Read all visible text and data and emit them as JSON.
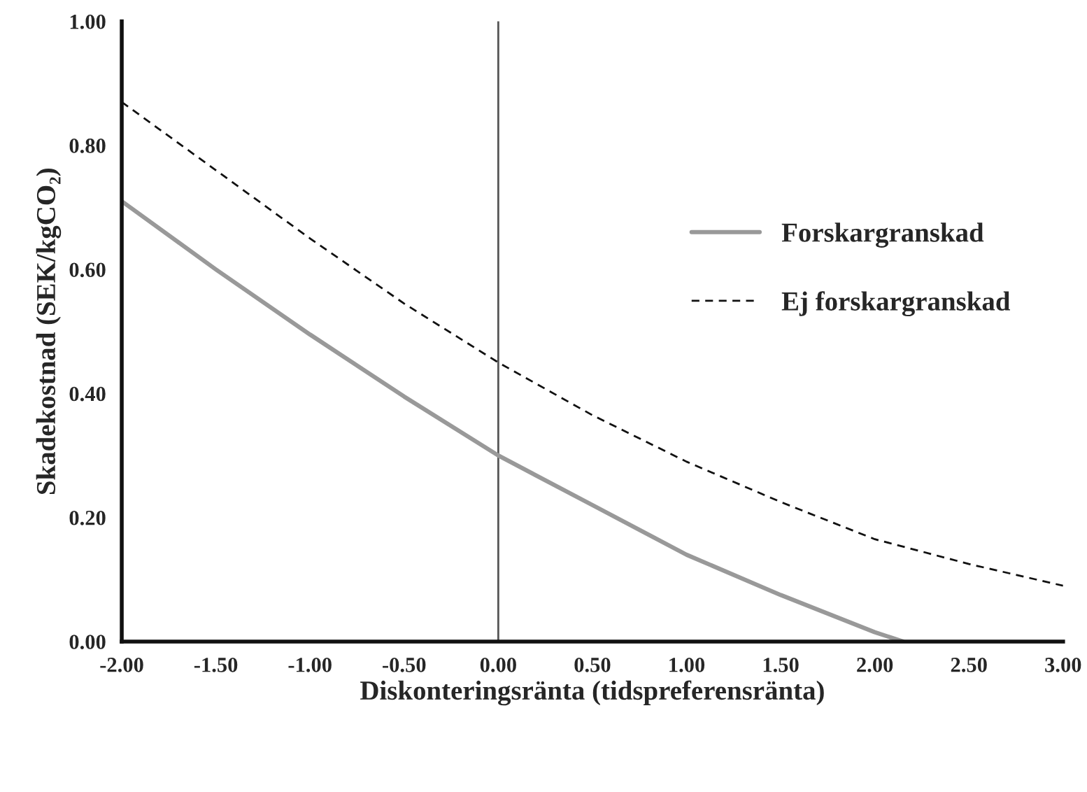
{
  "chart_data": {
    "type": "line",
    "xlabel": "Diskonteringsränta (tidspreferensränta)",
    "ylabel": "Skadekostnad (SEK/kgCO₂)",
    "series": [
      {
        "name": "Forskargranskad",
        "color": "#999999",
        "line_style": "solid",
        "x": [
          -2.0,
          -1.5,
          -1.0,
          -0.5,
          0.0,
          0.5,
          1.0,
          1.5,
          2.0,
          2.15
        ],
        "values": [
          0.71,
          0.6,
          0.495,
          0.395,
          0.3,
          0.22,
          0.14,
          0.075,
          0.015,
          0.0
        ]
      },
      {
        "name": "Ej forskargranskad",
        "color": "#111111",
        "line_style": "dashed",
        "x": [
          -2.0,
          -1.5,
          -1.0,
          -0.5,
          0.0,
          0.5,
          1.0,
          1.5,
          2.0,
          2.5,
          3.0
        ],
        "values": [
          0.87,
          0.76,
          0.65,
          0.545,
          0.45,
          0.365,
          0.29,
          0.225,
          0.165,
          0.125,
          0.09
        ]
      }
    ],
    "xlim": [
      -2.0,
      3.0
    ],
    "xticks": [
      {
        "value": -2.0,
        "label": "-2.00"
      },
      {
        "value": -1.5,
        "label": "-1.50"
      },
      {
        "value": -1.0,
        "label": "-1.00"
      },
      {
        "value": -0.5,
        "label": "-0.50"
      },
      {
        "value": 0.0,
        "label": "0.00"
      },
      {
        "value": 0.5,
        "label": "0.50"
      },
      {
        "value": 1.0,
        "label": "1.00"
      },
      {
        "value": 1.5,
        "label": "1.50"
      },
      {
        "value": 2.0,
        "label": "2.00"
      },
      {
        "value": 2.5,
        "label": "2.50"
      },
      {
        "value": 3.0,
        "label": "3.00"
      }
    ],
    "ylim": [
      0.0,
      1.0
    ],
    "yticks": [
      {
        "value": 0.0,
        "label": "0.00"
      },
      {
        "value": 0.2,
        "label": "0.20"
      },
      {
        "value": 0.4,
        "label": "0.40"
      },
      {
        "value": 0.6,
        "label": "0.60"
      },
      {
        "value": 0.8,
        "label": "0.80"
      },
      {
        "value": 1.0,
        "label": "1.00"
      }
    ],
    "ref_lines": [
      {
        "axis": "x",
        "value": 0.0,
        "color": "#555555",
        "line_style": "solid"
      }
    ],
    "grid": false,
    "legend": "right",
    "marker": "none"
  }
}
